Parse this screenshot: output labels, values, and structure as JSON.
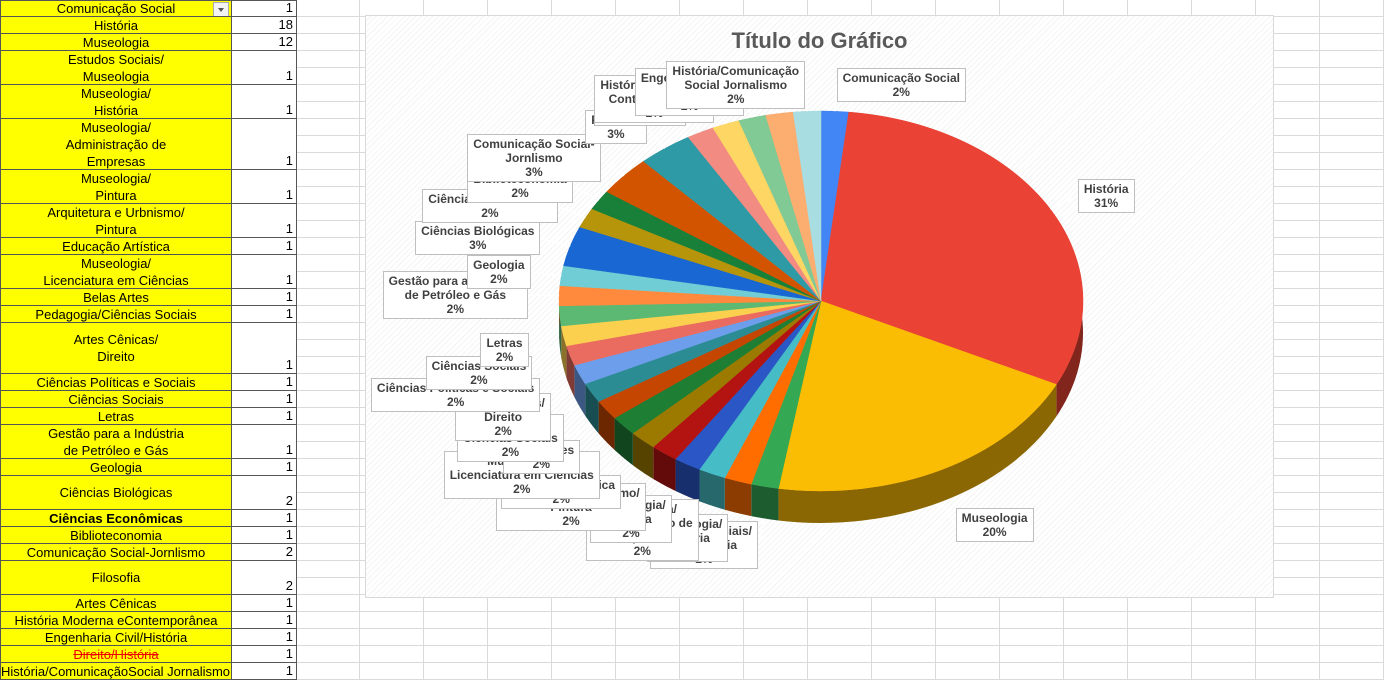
{
  "table": {
    "rows": [
      [
        "Comunicação Social",
        1
      ],
      [
        "História",
        18
      ],
      [
        "Museologia",
        12
      ],
      [
        "Estudos Sociais/\nMuseologia",
        1
      ],
      [
        "Museologia/\nHistória",
        1
      ],
      [
        "Museologia/\nAdministração de\nEmpresas",
        1
      ],
      [
        "Museologia/\nPintura",
        1
      ],
      [
        "Arquitetura e Urbnismo/\nPintura",
        1
      ],
      [
        "Educação Artística",
        1
      ],
      [
        "Museologia/\nLicenciatura em Ciências",
        1
      ],
      [
        "Belas Artes",
        1
      ],
      [
        "Pedagogia/Ciências Sociais",
        1
      ],
      [
        "Artes Cênicas/\nDireito",
        1
      ],
      [
        "Ciências Políticas e Sociais",
        1
      ],
      [
        "Ciências Sociais",
        1
      ],
      [
        "Letras",
        1
      ],
      [
        "Gestão para a Indústria\nde Petróleo e Gás",
        1
      ],
      [
        "Geologia",
        1
      ],
      [
        "Ciências Biológicas",
        2
      ],
      [
        "Ciências Econômicas",
        1
      ],
      [
        "Biblioteconomia",
        1
      ],
      [
        "Comunicação Social-Jornlismo",
        2
      ],
      [
        "Filosofia",
        2
      ],
      [
        "Artes Cênicas",
        1
      ],
      [
        "História Moderna eContemporânea",
        1
      ],
      [
        "Engenharia Civil/História",
        1
      ],
      [
        "Direito/História",
        1
      ],
      [
        "História/ComunicaçãoSocial Jornalismo",
        1
      ]
    ]
  },
  "chart_data": {
    "type": "pie",
    "title": "Título do Gráfico",
    "categories": [
      "Comunicação Social",
      "História",
      "Museologia",
      "Estudos Sociais/\nMuseologia",
      "Museologia/\nHistória",
      "Museologia/\nAdministração de\nEmpresas",
      "Museologia/\nPintura",
      "Arquitetura e Urbnismo/\nPintura",
      "Educação Artística",
      "Museologia/\nLicenciatura em Ciências",
      "Belas Artes",
      "Pedagogia/\nCiências Sociais",
      "Artes Cênicas/\nDireito",
      "Ciências Políticas e Sociais",
      "Ciências Sociais",
      "Letras",
      "Gestão para a Indústria\nde Petróleo e Gás",
      "Geologia",
      "Ciências Biológicas",
      "Ciências Econômicas",
      "Biblioteconomia",
      "Comunicação Social-\nJornlismo",
      "Filosofia",
      "Artes Cênicas",
      "História Moderna e\nContemporânea",
      "Engenharia Civil/\nHistória",
      "Direito/História",
      "História/Comunicação\nSocial Jornalismo"
    ],
    "values": [
      1.69,
      30.51,
      20.34,
      1.69,
      1.69,
      1.69,
      1.69,
      1.69,
      1.69,
      1.69,
      1.69,
      1.69,
      1.69,
      1.69,
      1.69,
      1.69,
      1.69,
      1.69,
      3.39,
      1.69,
      1.69,
      3.39,
      3.39,
      1.69,
      1.69,
      1.69,
      1.69,
      1.69
    ],
    "value_labels": [
      "2%",
      "31%",
      "20%",
      "2%",
      "2%",
      "2%",
      "2%",
      "2%",
      "2%",
      "2%",
      "2%",
      "2%",
      "2%",
      "2%",
      "2%",
      "2%",
      "2%",
      "2%",
      "3%",
      "2%",
      "2%",
      "3%",
      "3%",
      "2%",
      "2%",
      "2%",
      "2%",
      "2%"
    ],
    "colors": [
      "#4285f4",
      "#ea4335",
      "#fbbc04",
      "#34a853",
      "#ff6d01",
      "#46bdc6",
      "#2a56c6",
      "#b31412",
      "#9c7a00",
      "#1e7e34",
      "#c54600",
      "#2b8c94",
      "#6d9eeb",
      "#ea6c61",
      "#fcd04f",
      "#5bb974",
      "#ff8a3d",
      "#71cdd5",
      "#1967d2",
      "#b7950b",
      "#188038",
      "#d35400",
      "#2e9aa5",
      "#f28b82",
      "#fdd663",
      "#81c995",
      "#fcad70",
      "#a8dde2"
    ]
  }
}
